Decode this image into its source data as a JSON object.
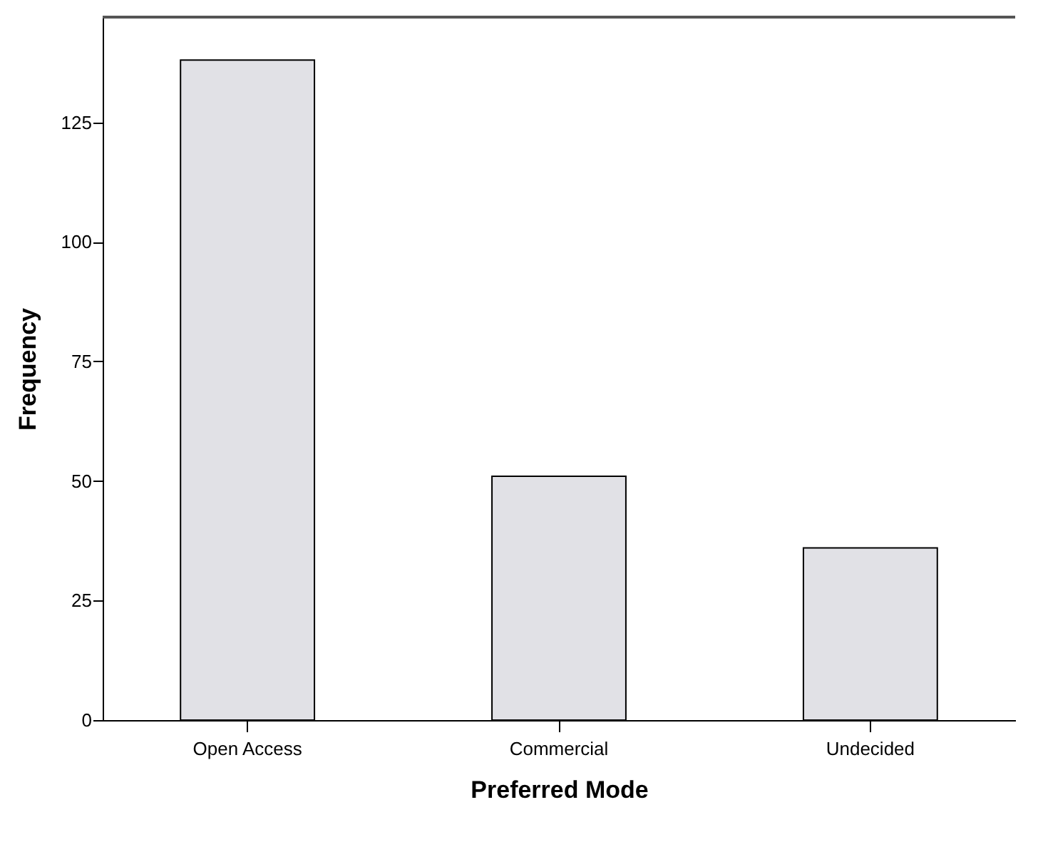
{
  "chart_data": {
    "type": "bar",
    "xlabel": "Preferred Mode",
    "ylabel": "Frequency",
    "categories": [
      "Open Access",
      "Commercial",
      "Undecided"
    ],
    "values": [
      138,
      51,
      36
    ],
    "color": "#e1e1e6",
    "ylim": [
      0,
      147
    ],
    "yticks": [
      0,
      25,
      50,
      75,
      100,
      125
    ],
    "grid": false
  }
}
